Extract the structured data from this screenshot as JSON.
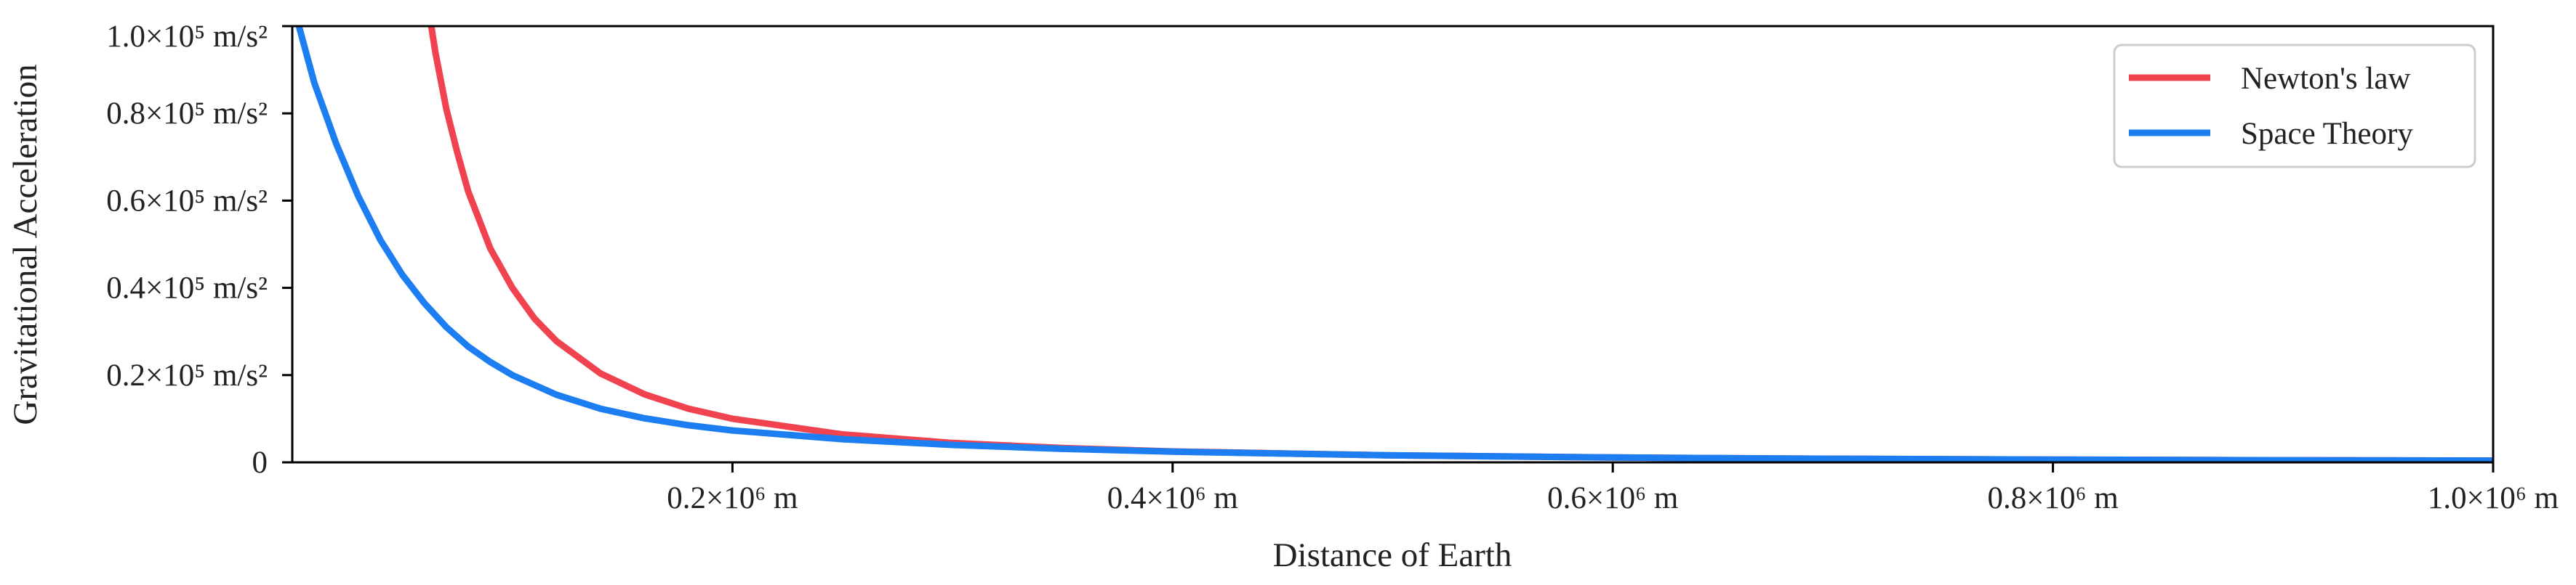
{
  "chart_data": {
    "type": "line",
    "xlabel": "Distance of Earth",
    "ylabel": "Gravitational Acceleration",
    "xlim": [
      0,
      1000000
    ],
    "ylim": [
      0,
      100000
    ],
    "grid": false,
    "legend_position": "top-right",
    "x_ticks": [
      {
        "value": 200000,
        "label": "0.2×10⁶ m"
      },
      {
        "value": 400000,
        "label": "0.4×10⁶ m"
      },
      {
        "value": 600000,
        "label": "0.6×10⁶ m"
      },
      {
        "value": 800000,
        "label": "0.8×10⁶ m"
      },
      {
        "value": 1000000,
        "label": "1.0×10⁶ m"
      }
    ],
    "y_ticks": [
      {
        "value": 0,
        "label": "0"
      },
      {
        "value": 20000,
        "label": "0.2×10⁵ m/s²"
      },
      {
        "value": 40000,
        "label": "0.4×10⁵ m/s²"
      },
      {
        "value": 60000,
        "label": "0.6×10⁵ m/s²"
      },
      {
        "value": 80000,
        "label": "0.8×10⁵ m/s²"
      },
      {
        "value": 100000,
        "label": "1.0×10⁵ m/s²"
      }
    ],
    "series": [
      {
        "name": "Newton's law",
        "color": "#f0434f",
        "x": [
          61000,
          65000,
          70000,
          75000,
          80000,
          90000,
          100000,
          110000,
          120000,
          140000,
          160000,
          180000,
          200000,
          250000,
          300000,
          350000,
          400000,
          500000,
          600000,
          700000,
          800000,
          900000,
          1000000
        ],
        "y": [
          107000,
          94000,
          81000,
          71000,
          62000,
          49000,
          40000,
          33000,
          27800,
          20400,
          15600,
          12300,
          10000,
          6400,
          4440,
          3270,
          2500,
          1600,
          1110,
          820,
          630,
          490,
          400
        ]
      },
      {
        "name": "Space Theory",
        "color": "#1c7ef0",
        "x": [
          0,
          3000,
          10000,
          20000,
          30000,
          40000,
          50000,
          60000,
          70000,
          80000,
          90000,
          100000,
          120000,
          140000,
          160000,
          180000,
          200000,
          250000,
          300000,
          350000,
          400000,
          500000,
          600000,
          700000,
          800000,
          900000,
          1000000
        ],
        "y": [
          107000,
          100000,
          87000,
          73000,
          61000,
          51000,
          43000,
          36500,
          31000,
          26500,
          23000,
          20000,
          15500,
          12300,
          10100,
          8500,
          7300,
          5300,
          4000,
          3100,
          2450,
          1600,
          1110,
          820,
          630,
          490,
          400
        ]
      }
    ]
  }
}
